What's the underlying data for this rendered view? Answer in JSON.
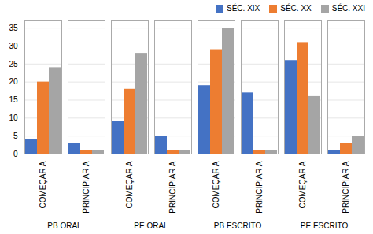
{
  "chart_data": {
    "type": "bar",
    "categories": [
      "COMEÇAR A",
      "PRINCIPIAR A",
      "COMEÇAR A",
      "PRINCIPIAR A",
      "COMEÇAR A",
      "PRINCIPIAR A",
      "COMEÇAR A",
      "PRINCIPIAR A"
    ],
    "group_labels": [
      "PB ORAL",
      "PE ORAL",
      "PB ESCRITO",
      "PE ESCRITO"
    ],
    "series": [
      {
        "name": "SÉC. XIX",
        "color": "#4472C4",
        "values": [
          4,
          3,
          9,
          5,
          19,
          17,
          26,
          1
        ]
      },
      {
        "name": "SÉC. XX",
        "color": "#ED7D31",
        "values": [
          20,
          1,
          18,
          1,
          29,
          1,
          31,
          3
        ]
      },
      {
        "name": "SÉC. XXI",
        "color": "#A5A5A5",
        "values": [
          24,
          1,
          28,
          1,
          35,
          1,
          16,
          5
        ]
      }
    ],
    "ylim": [
      0,
      37
    ],
    "yticks": [
      0,
      5,
      10,
      15,
      20,
      25,
      30,
      35
    ],
    "grid": true,
    "legend": "upper right"
  }
}
